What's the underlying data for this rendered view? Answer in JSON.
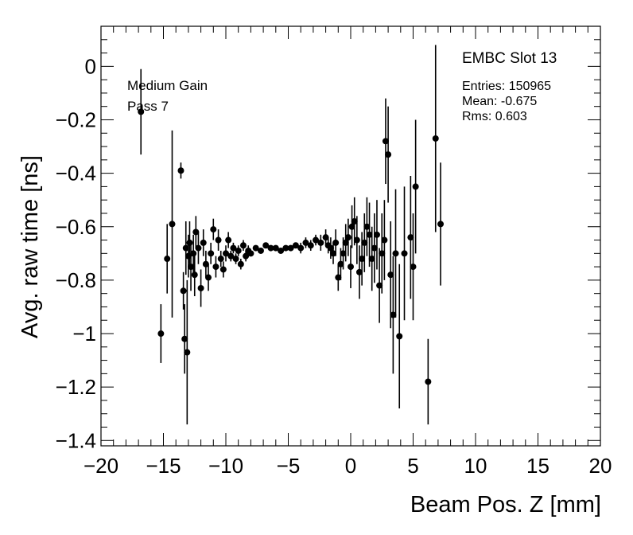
{
  "chart_data": {
    "type": "scatter",
    "title": "",
    "xlabel": "Beam Pos. Z [mm]",
    "ylabel": "Avg. raw time [ns]",
    "xlim": [
      -20,
      20
    ],
    "ylim": [
      -1.42,
      0.15
    ],
    "xticks": [
      -20,
      -15,
      -10,
      -5,
      0,
      5,
      10,
      15,
      20
    ],
    "xtick_labels": [
      "−20",
      "−15",
      "−10",
      "−5",
      "0",
      "5",
      "10",
      "15",
      "20"
    ],
    "yticks": [
      0,
      -0.2,
      -0.4,
      -0.6,
      -0.8,
      -1,
      -1.2,
      -1.4
    ],
    "ytick_labels": [
      "0",
      "−0.2",
      "−0.4",
      "−0.6",
      "−0.8",
      "−1",
      "−1.2",
      "−1.4"
    ],
    "grid": false,
    "annotations": {
      "gain": "Medium Gain",
      "pass": "Pass 7",
      "slot": "EMBC Slot 13",
      "entries": "Entries: 150965",
      "mean": "Mean: -0.675",
      "rms": "Rms: 0.603"
    },
    "series": [
      {
        "marker": "circle",
        "color": "#000000",
        "x": [
          -16.8,
          -15.2,
          -14.7,
          -14.3,
          -13.6,
          -13.4,
          -13.3,
          -13.2,
          -13.1,
          -13.0,
          -12.9,
          -12.8,
          -12.6,
          -12.5,
          -12.4,
          -12.2,
          -12.0,
          -11.8,
          -11.6,
          -11.4,
          -11.2,
          -11.0,
          -10.8,
          -10.6,
          -10.4,
          -10.2,
          -10.0,
          -9.8,
          -9.6,
          -9.4,
          -9.2,
          -9.0,
          -8.8,
          -8.6,
          -8.4,
          -8.2,
          -8.0,
          -7.6,
          -7.2,
          -6.8,
          -6.4,
          -6.0,
          -5.6,
          -5.2,
          -4.8,
          -4.4,
          -4.0,
          -3.6,
          -3.2,
          -2.8,
          -2.4,
          -2.0,
          -1.8,
          -1.6,
          -1.4,
          -1.2,
          -1.0,
          -0.8,
          -0.6,
          -0.4,
          -0.2,
          0.0,
          0.1,
          0.3,
          0.5,
          0.7,
          0.9,
          1.1,
          1.3,
          1.5,
          1.7,
          1.9,
          2.1,
          2.3,
          2.5,
          2.7,
          2.8,
          3.0,
          3.2,
          3.4,
          3.6,
          3.9,
          4.3,
          4.8,
          5.0,
          5.2,
          6.2,
          6.8,
          7.2
        ],
        "y": [
          -0.17,
          -1.0,
          -0.72,
          -0.59,
          -0.39,
          -0.84,
          -1.02,
          -0.68,
          -1.07,
          -0.71,
          -0.66,
          -0.75,
          -0.7,
          -0.78,
          -0.62,
          -0.68,
          -0.83,
          -0.66,
          -0.74,
          -0.79,
          -0.7,
          -0.61,
          -0.75,
          -0.65,
          -0.72,
          -0.76,
          -0.7,
          -0.65,
          -0.71,
          -0.68,
          -0.72,
          -0.69,
          -0.74,
          -0.67,
          -0.71,
          -0.69,
          -0.7,
          -0.68,
          -0.69,
          -0.67,
          -0.68,
          -0.68,
          -0.69,
          -0.68,
          -0.68,
          -0.67,
          -0.68,
          -0.66,
          -0.67,
          -0.65,
          -0.66,
          -0.64,
          -0.67,
          -0.68,
          -0.7,
          -0.66,
          -0.79,
          -0.74,
          -0.7,
          -0.66,
          -0.64,
          -0.75,
          -0.6,
          -0.58,
          -0.65,
          -0.77,
          -0.72,
          -0.66,
          -0.6,
          -0.63,
          -0.72,
          -0.68,
          -0.63,
          -0.82,
          -0.7,
          -0.65,
          -0.28,
          -0.33,
          -0.78,
          -0.93,
          -0.7,
          -1.01,
          -0.7,
          -0.64,
          -0.75,
          -0.45,
          -1.18,
          -0.27,
          -0.59
        ],
        "yerr": [
          0.16,
          0.11,
          0.13,
          0.35,
          0.03,
          0.07,
          0.13,
          0.1,
          0.27,
          0.08,
          0.08,
          0.09,
          0.07,
          0.08,
          0.06,
          0.06,
          0.07,
          0.05,
          0.05,
          0.05,
          0.04,
          0.04,
          0.04,
          0.04,
          0.03,
          0.03,
          0.03,
          0.03,
          0.02,
          0.02,
          0.02,
          0.02,
          0.02,
          0.02,
          0.02,
          0.02,
          0.01,
          0.01,
          0.01,
          0.01,
          0.01,
          0.01,
          0.01,
          0.01,
          0.01,
          0.01,
          0.02,
          0.02,
          0.02,
          0.02,
          0.03,
          0.03,
          0.03,
          0.04,
          0.04,
          0.05,
          0.05,
          0.06,
          0.06,
          0.07,
          0.07,
          0.08,
          0.08,
          0.09,
          0.09,
          0.1,
          0.1,
          0.11,
          0.11,
          0.12,
          0.12,
          0.13,
          0.13,
          0.14,
          0.15,
          0.15,
          0.16,
          0.18,
          0.2,
          0.22,
          0.24,
          0.27,
          0.25,
          0.23,
          0.2,
          0.25,
          0.16,
          0.35,
          0.23
        ]
      }
    ]
  }
}
